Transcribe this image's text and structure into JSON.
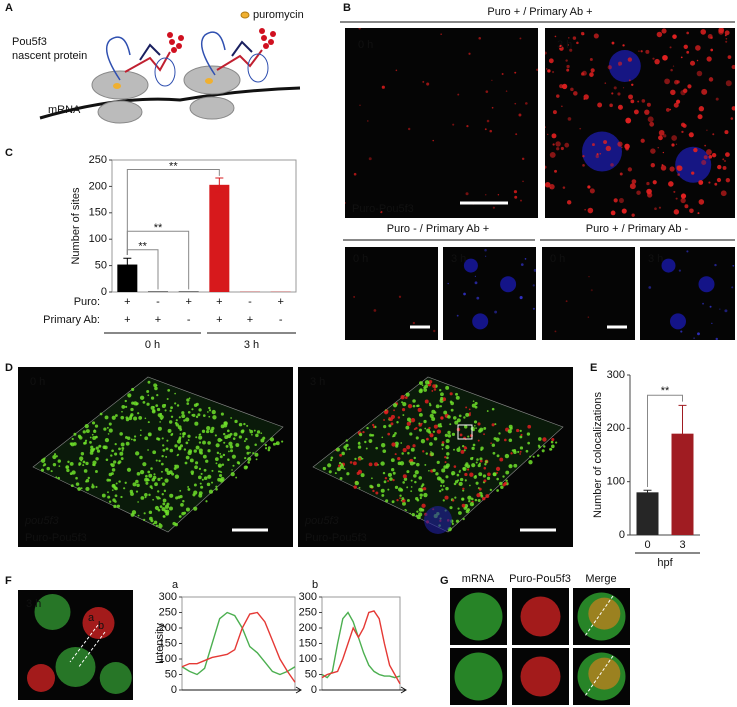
{
  "panel_labels": [
    "A",
    "B",
    "C",
    "D",
    "E",
    "F",
    "G"
  ],
  "panel_a": {
    "legend": "puromycin",
    "protein_label_1": "Pou5f3",
    "protein_label_2": "nascent protein",
    "mrna_label": "mRNA"
  },
  "panel_b": {
    "header_top": "Puro + /  Primary Ab +",
    "header_left": "Puro - / Primary Ab +",
    "header_right": "Puro + / Primary Ab -",
    "time_0": "0 h",
    "time_3": "3 h",
    "channel": "Puro-Pou5f3"
  },
  "panel_d": {
    "time_0": "0 h",
    "time_3": "3 h",
    "channel_green": "pou5f3",
    "channel_red": "Puro-Pou5f3"
  },
  "panel_f": {
    "time": "3 h",
    "line_a": "a",
    "line_b": "b"
  },
  "panel_g": {
    "columns": [
      "mRNA",
      "Puro-Pou5f3",
      "Merge"
    ]
  },
  "chart_data": [
    {
      "type": "bar",
      "ylabel": "Number of sites",
      "categories": [
        null,
        null,
        null,
        null,
        null,
        null
      ],
      "values": [
        52,
        1,
        1,
        203,
        0.5,
        0.5
      ],
      "errors": [
        12,
        null,
        null,
        13,
        null,
        null
      ],
      "colors": [
        "#000000",
        "#000000",
        "#000000",
        "#d7191c",
        "#d7191c",
        "#d7191c"
      ],
      "ylim": [
        0,
        250
      ],
      "yticks": [
        0,
        50,
        100,
        150,
        200,
        250
      ],
      "row_labels": [
        "Puro:",
        "Primary Ab:"
      ],
      "rows": [
        [
          "+",
          "-",
          "+",
          "+",
          "-",
          "+"
        ],
        [
          "+",
          "+",
          "-",
          "+",
          "+",
          "-"
        ]
      ],
      "groups": [
        "0 h",
        "3 h"
      ],
      "annotations": [
        "**",
        "**",
        "**"
      ]
    },
    {
      "type": "bar",
      "ylabel": "Number of colocalizations",
      "xlabel": "hpf",
      "categories": [
        "0",
        "3"
      ],
      "values": [
        80,
        190
      ],
      "errors": [
        4,
        53
      ],
      "colors": [
        "#262626",
        "#a01c22"
      ],
      "ylim": [
        0,
        300
      ],
      "yticks": [
        0,
        100,
        200,
        300
      ],
      "annotations": [
        "**"
      ]
    },
    {
      "type": "line",
      "title": "a",
      "ylabel": "Intensity",
      "series": [
        {
          "color": "#4caf50",
          "values": [
            75,
            60,
            50,
            70,
            150,
            230,
            250,
            240,
            200,
            140,
            120,
            90,
            60,
            50,
            60,
            75
          ]
        },
        {
          "color": "#e53935",
          "values": [
            75,
            85,
            85,
            95,
            105,
            110,
            115,
            130,
            200,
            245,
            250,
            220,
            160,
            100,
            60,
            25
          ]
        }
      ],
      "ylim": [
        0,
        300
      ],
      "yticks": [
        0,
        50,
        100,
        150,
        200,
        250,
        300
      ]
    },
    {
      "type": "line",
      "title": "b",
      "series": [
        {
          "color": "#4caf50",
          "values": [
            50,
            40,
            60,
            150,
            230,
            250,
            220,
            170,
            120,
            80,
            60,
            50,
            45,
            45,
            40,
            45
          ]
        },
        {
          "color": "#e53935",
          "values": [
            40,
            50,
            55,
            60,
            100,
            150,
            200,
            170,
            200,
            250,
            255,
            230,
            150,
            80,
            50,
            20
          ]
        }
      ],
      "ylim": [
        0,
        300
      ],
      "yticks": [
        0,
        50,
        100,
        150,
        200,
        250,
        300
      ]
    }
  ]
}
